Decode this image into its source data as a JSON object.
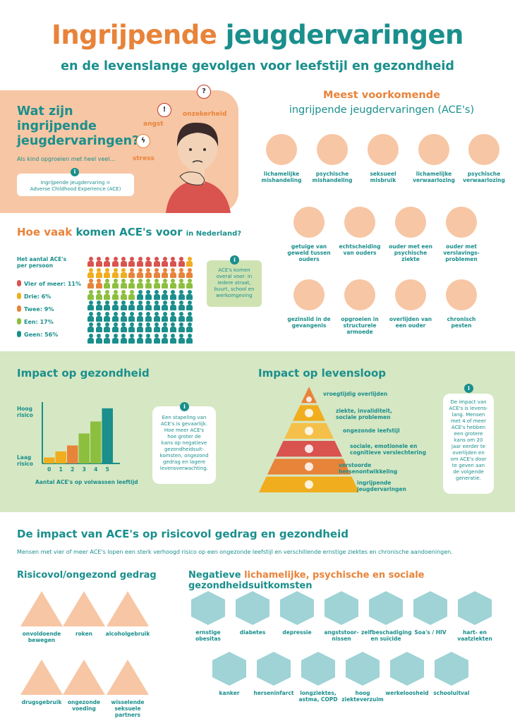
{
  "header": {
    "title_part1": "Ingrijpende",
    "title_part2": "jeugdervaringen",
    "subtitle": "en de levenslange gevolgen voor leefstijl en gezondheid"
  },
  "wat": {
    "title_line1": "Wat zijn",
    "title_line2": "ingrijpende",
    "title_line3": "jeugdervaringen?",
    "subtitle": "Als kind opgroeien met heel veel…",
    "emotions": [
      "onzekerheid",
      "angst",
      "stress"
    ],
    "definition_line1": "Ingrijpende jeugdervaring =",
    "definition_line2": "Adverse Childhood Experience (ACE)"
  },
  "meest": {
    "line1": "Meest voorkomende",
    "line2": "ingrijpende jeugdervaringen (ACE's)",
    "items": [
      [
        "lichamelijke",
        "mishandeling"
      ],
      [
        "psychische",
        "mishandeling"
      ],
      [
        "seksueel",
        "misbruik"
      ],
      [
        "lichamelijke",
        "verwaarlozing"
      ],
      [
        "psychische",
        "verwaarlozing"
      ],
      [
        "getuige van",
        "geweld tussen",
        "ouders"
      ],
      [
        "echtscheiding",
        "van ouders"
      ],
      [
        "ouder met een",
        "psychische",
        "ziekte"
      ],
      [
        "ouder met",
        "verslavings-",
        "problemen"
      ],
      [
        "gezinslid in de",
        "gevangenis"
      ],
      [
        "opgroeien in",
        "structurele",
        "armoede"
      ],
      [
        "overlijden van",
        "een ouder"
      ],
      [
        "chronisch",
        "pesten"
      ]
    ]
  },
  "hoe": {
    "title_a": "Hoe vaak",
    "title_b": "komen ACE's voor",
    "title_c": "in Nederland?",
    "aantal_line1": "Het aantal ACE's",
    "aantal_line2": "per persoon",
    "legend": [
      {
        "label": "Vier of meer: 11%",
        "color": "#d9534f",
        "pct": 11
      },
      {
        "label": "Drie: 6%",
        "color": "#f0ad1e",
        "pct": 6
      },
      {
        "label": "Twee: 9%",
        "color": "#e8833a",
        "pct": 9
      },
      {
        "label": "Een: 17%",
        "color": "#8dbf3f",
        "pct": 17
      },
      {
        "label": "Geen: 56%",
        "color": "#1a8f8c",
        "pct": 56
      }
    ],
    "info_line1": "ACE's komen",
    "info_line2": "overal voor: in",
    "info_line3": "iedere straat,",
    "info_line4": "buurt, school en",
    "info_line5": "werkomgeving",
    "info_icon": "i"
  },
  "impact_gez": {
    "title": "Impact op gezondheid",
    "hoog_line1": "Hoog",
    "hoog_line2": "risico",
    "laag_line1": "Laag",
    "laag_line2": "risico",
    "xlabel": "Aantal ACE's op volwassen leeftijd",
    "chart_data": {
      "type": "bar",
      "categories": [
        "0",
        "1",
        "2",
        "3",
        "4",
        "5"
      ],
      "values": [
        0.5,
        1,
        1.5,
        2.5,
        3.5,
        4.6
      ],
      "xlabel": "Aantal ACE's op volwassen leeftijd",
      "ylabel": "",
      "ylim": [
        0,
        5
      ],
      "colors": [
        "#f0ad1e",
        "#f0ad1e",
        "#e8833a",
        "#8dbf3f",
        "#8dbf3f",
        "#1a8f8c"
      ]
    },
    "info_lines": [
      "Een stapeling van",
      "ACE's is gevaarlijk.",
      "Hoe meer ACE's",
      "hoe groter de",
      "kans op negatieve",
      "gezondheidsuit-",
      "komsten, ongezond",
      "gedrag en lagere",
      "levensverwachting."
    ],
    "info_icon": "i"
  },
  "impact_lev": {
    "title": "Impact op levensloop",
    "levels": [
      {
        "label_lines": [
          "vroegtijdig overlijden"
        ],
        "color": "#e8833a"
      },
      {
        "label_lines": [
          "ziekte, invaliditeit,",
          "sociale problemen"
        ],
        "color": "#f0ad1e"
      },
      {
        "label_lines": [
          "ongezonde leefstijl"
        ],
        "color": "#f5c04a"
      },
      {
        "label_lines": [
          "sociale, emotionele en",
          "cognitieve verslechtering"
        ],
        "color": "#d9534f"
      },
      {
        "label_lines": [
          "verstoorde",
          "hersenontwikkeling"
        ],
        "color": "#e8833a"
      },
      {
        "label_lines": [
          "ingrijpende",
          "jeugdervaringen"
        ],
        "color": "#f0ad1e"
      }
    ],
    "info_lines": [
      "De impact van",
      "ACE's is levens-",
      "lang. Mensen",
      "met 4 of meer",
      "ACE's hebben",
      "een grotere",
      "kans om 20",
      "jaar eerder te",
      "overlijden en",
      "om ACE's door",
      "te geven aan",
      "de volgende",
      "generatie."
    ],
    "info_icon": "i"
  },
  "bottom": {
    "title": "De impact van ACE's op risicovol gedrag en gezondheid",
    "subtitle": "Mensen met vier of meer ACE's lopen een sterk verhoogd risico op een ongezonde leefstijl en verschillende ernstige ziektes en chronische aandoeningen.",
    "ris_title": "Risicovol/ongezond gedrag",
    "neg_a": "Negatieve",
    "neg_b": "lichamelijke, psychische en sociale",
    "neg_c": "gezondheidsuitkomsten",
    "ris_items": [
      [
        "onvoldoende",
        "bewegen"
      ],
      [
        "roken"
      ],
      [
        "alcoholgebruik"
      ],
      [
        "drugsgebruik"
      ],
      [
        "ongezonde",
        "voeding"
      ],
      [
        "wisselende",
        "seksuele",
        "partners"
      ]
    ],
    "neg_items_row1": [
      [
        "ernstige",
        "obesitas"
      ],
      [
        "diabetes"
      ],
      [
        "depressie"
      ],
      [
        "angststoor-",
        "nissen"
      ],
      [
        "zelfbeschadiging",
        "en suïcide"
      ],
      [
        "Soa's / HIV"
      ],
      [
        "hart- en",
        "vaatziekten"
      ]
    ],
    "neg_items_row2": [
      [
        "kanker"
      ],
      [
        "herseninfarct"
      ],
      [
        "longziektes,",
        "astma, COPD"
      ],
      [
        "hoog",
        "ziekteverzuim"
      ],
      [
        "werkeloosheid"
      ],
      [
        "schooluitval"
      ]
    ]
  }
}
